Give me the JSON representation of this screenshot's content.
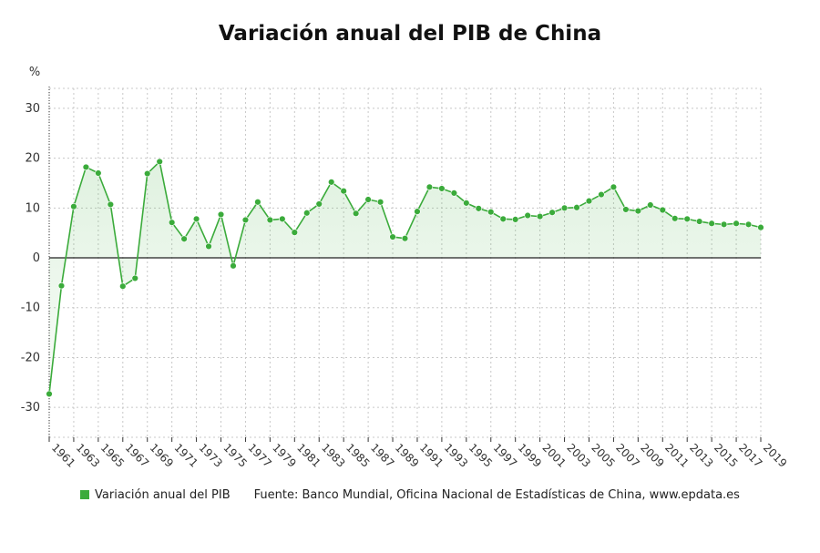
{
  "chart_data": {
    "type": "line",
    "title": "Variación anual del PIB de China",
    "ylabel": "%",
    "xlabel": "",
    "ylim": [
      -36,
      34
    ],
    "yticks": [
      30,
      20,
      10,
      0,
      -10,
      -20,
      -30
    ],
    "xticks": [
      1961,
      1963,
      1965,
      1967,
      1969,
      1971,
      1973,
      1975,
      1977,
      1979,
      1981,
      1983,
      1985,
      1987,
      1989,
      1991,
      1993,
      1995,
      1997,
      1999,
      2001,
      2003,
      2005,
      2007,
      2009,
      2011,
      2013,
      2015,
      2017,
      2019
    ],
    "grid": true,
    "legend_position": "bottom",
    "color": "#3bab3b",
    "x": [
      1961,
      1962,
      1963,
      1964,
      1965,
      1966,
      1967,
      1968,
      1969,
      1970,
      1971,
      1972,
      1973,
      1974,
      1975,
      1976,
      1977,
      1978,
      1979,
      1980,
      1981,
      1982,
      1983,
      1984,
      1985,
      1986,
      1987,
      1988,
      1989,
      1990,
      1991,
      1992,
      1993,
      1994,
      1995,
      1996,
      1997,
      1998,
      1999,
      2000,
      2001,
      2002,
      2003,
      2004,
      2005,
      2006,
      2007,
      2008,
      2009,
      2010,
      2011,
      2012,
      2013,
      2014,
      2015,
      2016,
      2017,
      2018,
      2019
    ],
    "series": [
      {
        "name": "Variación anual del PIB",
        "values": [
          -27.3,
          -5.6,
          10.3,
          18.2,
          17.0,
          10.7,
          -5.7,
          -4.1,
          16.9,
          19.3,
          7.1,
          3.8,
          7.8,
          2.3,
          8.7,
          -1.6,
          7.6,
          11.2,
          7.6,
          7.8,
          5.1,
          9.0,
          10.8,
          15.2,
          13.4,
          8.9,
          11.7,
          11.2,
          4.2,
          3.9,
          9.3,
          14.2,
          13.9,
          13.0,
          11.0,
          9.9,
          9.2,
          7.8,
          7.7,
          8.5,
          8.3,
          9.1,
          10.0,
          10.1,
          11.4,
          12.7,
          14.2,
          9.7,
          9.4,
          10.6,
          9.6,
          7.9,
          7.8,
          7.3,
          6.9,
          6.7,
          6.9,
          6.7,
          6.1
        ]
      }
    ]
  },
  "legend": {
    "series_label": "Variación anual del PIB",
    "source": "Fuente: Banco Mundial, Oficina Nacional de Estadísticas de China, www.epdata.es"
  }
}
